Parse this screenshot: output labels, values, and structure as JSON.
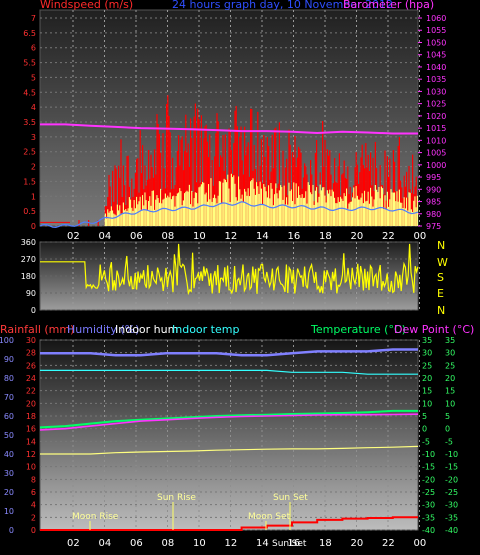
{
  "header": {
    "title": "24 hours graph day, 10 November 2012",
    "left_label": "Windspeed (m/s)",
    "right_label": "Barometer (hpa)"
  },
  "bottom_header": {
    "rain_label": "Rainfall (mm)",
    "humidity_label": "Humidity (%)",
    "indoor_hum_label": "Indoor hum",
    "indoor_temp_label": "Indoor temp",
    "temp_label": "Temperature (°C)",
    "dew_label": "Dew Point (°C)"
  },
  "compass": [
    "N",
    "W",
    "S",
    "E",
    "N"
  ],
  "annotations": {
    "moon_rise": "Moon Rise",
    "sun_rise": "Sun Rise",
    "sun_set": "Sun Set",
    "moon_set": "Moon Set",
    "sunlset": "SunlSet"
  },
  "colors": {
    "wind": "#ff0000",
    "gust": "#ffff80",
    "avg": "#4d7dff",
    "barometer": "#ff33ff",
    "direction": "#ffff00",
    "humidity": "#8080ff",
    "indoor_hum": "#33ffff",
    "indoor_temp": "#ffff80",
    "temperature": "#00ff66",
    "dew": "#ff33ff",
    "rain": "#ff0000",
    "grid_bg_top": "#2a2a2a",
    "grid_bg_bottom": "#b8b8b8"
  },
  "chart_data": [
    {
      "type": "bar",
      "name": "wind",
      "x_ticks": [
        "02",
        "04",
        "06",
        "08",
        "10",
        "12",
        "14",
        "16",
        "18",
        "20",
        "22",
        "00"
      ],
      "left_ticks": [
        "0",
        "0.5",
        "1",
        "1.5",
        "2",
        "2.5",
        "3",
        "3.5",
        "4",
        "4.5",
        "5",
        "5.5",
        "6",
        "6.5",
        "7"
      ],
      "right_ticks": [
        "975",
        "980",
        "985",
        "990",
        "995",
        "1000",
        "1005",
        "1010",
        "1015",
        "1020",
        "1025",
        "1030",
        "1035",
        "1040",
        "1045",
        "1050",
        "1055",
        "1060"
      ],
      "ylim": [
        0,
        7
      ],
      "y2lim": [
        975,
        1060
      ],
      "barometer": [
        1016.5,
        1016.5,
        1016.0,
        1015.5,
        1015.0,
        1014.8,
        1014.5,
        1014.2,
        1013.8,
        1013.8,
        1013.5,
        1013.0,
        1013.5,
        1013.2,
        1012.8,
        1012.8
      ],
      "wind_level": [
        0,
        0,
        0.2,
        0.6,
        0.9,
        1.0,
        1.1,
        1.3,
        1.4,
        1.2,
        1.2,
        1.1,
        1.0,
        1.1,
        1.0,
        0.8
      ],
      "gust_level": [
        0,
        0,
        0.3,
        1.3,
        1.8,
        2.6,
        2.5,
        2.3,
        2.4,
        2.2,
        1.9,
        1.8,
        1.6,
        1.7,
        1.7,
        1.4
      ]
    },
    {
      "type": "line",
      "name": "direction",
      "y_ticks": [
        "0",
        "90",
        "180",
        "270",
        "360"
      ],
      "ylim": [
        0,
        360
      ],
      "start_level": 255,
      "mean_level": 165
    },
    {
      "type": "line",
      "name": "humidity-temperature",
      "x_ticks": [
        "02",
        "04",
        "06",
        "08",
        "10",
        "12",
        "14",
        "16",
        "18",
        "20",
        "22",
        "00"
      ],
      "left_ticks": [
        "0",
        "10",
        "20",
        "30",
        "40",
        "50",
        "60",
        "70",
        "80",
        "90",
        "100"
      ],
      "rain_ticks": [
        "0",
        "2",
        "4",
        "6",
        "8",
        "10",
        "12",
        "14",
        "16",
        "18",
        "20",
        "22",
        "24",
        "26",
        "28",
        "30"
      ],
      "temp_ticks": [
        "-40",
        "-35",
        "-30",
        "-25",
        "-20",
        "-15",
        "-10",
        "-5",
        "0",
        "5",
        "10",
        "15",
        "20",
        "25",
        "30",
        "35"
      ],
      "temp_ticks_right": [
        "-40",
        "-35",
        "-30",
        "-25",
        "-20",
        "-15",
        "-10",
        "-5",
        "0",
        "5",
        "10",
        "15",
        "20",
        "25",
        "30",
        "35"
      ],
      "humidity": [
        93,
        93,
        93,
        92,
        92,
        93,
        93,
        93,
        92,
        92,
        93,
        94,
        94,
        94,
        95,
        95
      ],
      "indoor_temp_hum": [
        84,
        84,
        84,
        84,
        84,
        84,
        84,
        84,
        84,
        84,
        83,
        83,
        83,
        82,
        82,
        82
      ],
      "temperature": [
        0.5,
        1,
        2,
        3,
        3.5,
        4,
        4.5,
        5,
        5.3,
        5.5,
        5.8,
        6,
        6.2,
        6.5,
        7,
        7
      ],
      "dew_point": [
        -0.5,
        0,
        1,
        2,
        3,
        3.5,
        4,
        4.5,
        4.8,
        5,
        5.2,
        5.4,
        5.5,
        5.5,
        5.6,
        5.7
      ],
      "indoor_temp": [
        -10,
        -10,
        -10,
        -9.5,
        -9.2,
        -9,
        -8.8,
        -8.5,
        -8.3,
        -8.1,
        -8.0,
        -8.0,
        -7.8,
        -7.5,
        -7.3,
        -7
      ],
      "rainfall": [
        0,
        0,
        0,
        0,
        0,
        0,
        0,
        0,
        0.4,
        0.7,
        1.2,
        1.6,
        1.8,
        1.9,
        2.0,
        2.0
      ]
    }
  ]
}
